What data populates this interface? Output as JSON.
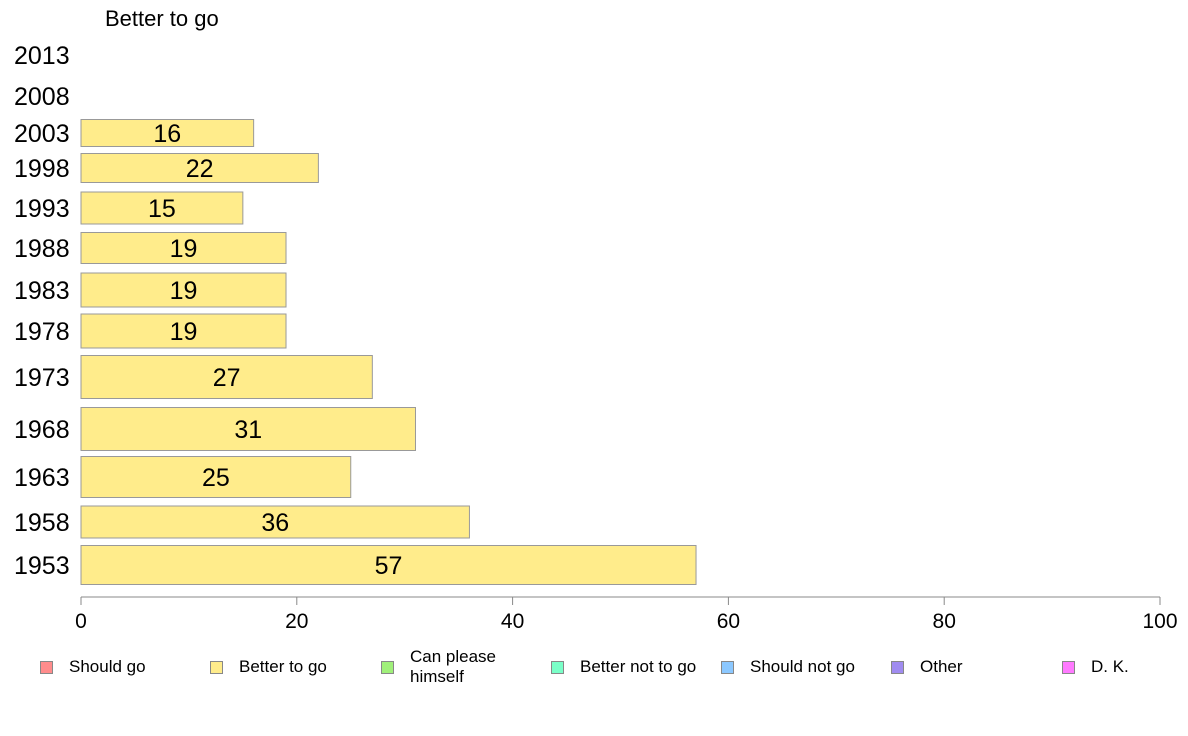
{
  "panel_title": "Better to go",
  "chart_data": {
    "type": "bar",
    "orientation": "horizontal",
    "title": "Better to go",
    "categories": [
      "2013",
      "2008",
      "2003",
      "1998",
      "1993",
      "1988",
      "1983",
      "1978",
      "1973",
      "1968",
      "1963",
      "1958",
      "1953"
    ],
    "values": [
      null,
      null,
      16,
      22,
      15,
      19,
      19,
      19,
      27,
      31,
      25,
      36,
      57
    ],
    "value_labels": [
      "",
      "",
      "16",
      "22",
      "15",
      "19",
      "19",
      "19",
      "27",
      "31",
      "25",
      "36",
      "57"
    ],
    "xlim": [
      0,
      100
    ],
    "xticks": [
      "0",
      "20",
      "40",
      "60",
      "80",
      "100"
    ],
    "xlabel": "",
    "ylabel": "",
    "bar_color": "#ffec8b",
    "grid": false,
    "legend_placement": "bottom"
  },
  "legend": [
    {
      "label": "Should go",
      "color": "#ff8c8c"
    },
    {
      "label": "Better to go",
      "color": "#ffec8b"
    },
    {
      "label": "Can please himself",
      "color": "#a0f07a"
    },
    {
      "label": "Better not to go",
      "color": "#7affc8"
    },
    {
      "label": "Should not go",
      "color": "#8cc8ff"
    },
    {
      "label": "Other",
      "color": "#a08cf0"
    },
    {
      "label": "D. K.",
      "color": "#ff7aff"
    }
  ]
}
